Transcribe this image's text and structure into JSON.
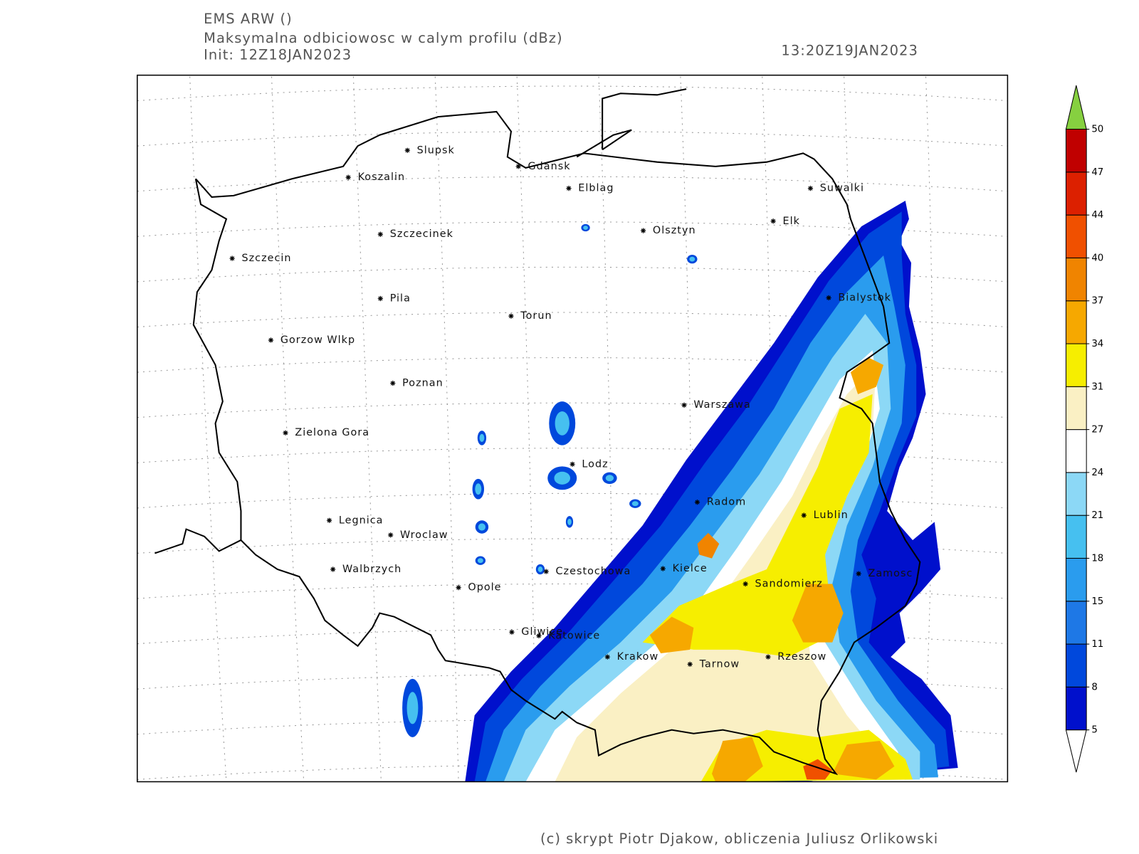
{
  "header": {
    "lines": [
      "EMS ARW ()",
      "Maksymalna odbiciowosc w calym profilu (dBz)",
      "Init: 12Z18JAN2023"
    ],
    "valid_time": "13:20Z19JAN2023"
  },
  "cities": [
    "Slupsk",
    "Koszalin",
    "Gdansk",
    "Elblag",
    "Suwalki",
    "Szczecinek",
    "Olsztyn",
    "Elk",
    "Szczecin",
    "Bialystok",
    "Pila",
    "Torun",
    "Gorzow Wlkp",
    "Poznan",
    "Warszawa",
    "Zielona Gora",
    "Lodz",
    "Radom",
    "Lublin",
    "Legnica",
    "Wroclaw",
    "Kielce",
    "Czestochowa",
    "Walbrzych",
    "Zamosc",
    "Sandomierz",
    "Opole",
    "Gliwice",
    "Katowice",
    "Krakow",
    "Rzeszow",
    "Tarnow"
  ],
  "colorbar": {
    "levels": [
      5,
      8,
      11,
      15,
      18,
      21,
      24,
      27,
      31,
      34,
      37,
      40,
      44,
      47,
      50
    ],
    "colors": [
      "#0010cc",
      "#0048dc",
      "#1e78e6",
      "#2a9cee",
      "#46c0f0",
      "#8cd8f6",
      "#ffffff",
      "#faf0c4",
      "#f6ee00",
      "#f6a800",
      "#f08400",
      "#f05000",
      "#dc2000",
      "#c00000"
    ],
    "above_color": "#86d040",
    "below_color": "#ffffff"
  },
  "credit": "(c) skrypt Piotr Djakow, obliczenia Juliusz Orlikowski"
}
